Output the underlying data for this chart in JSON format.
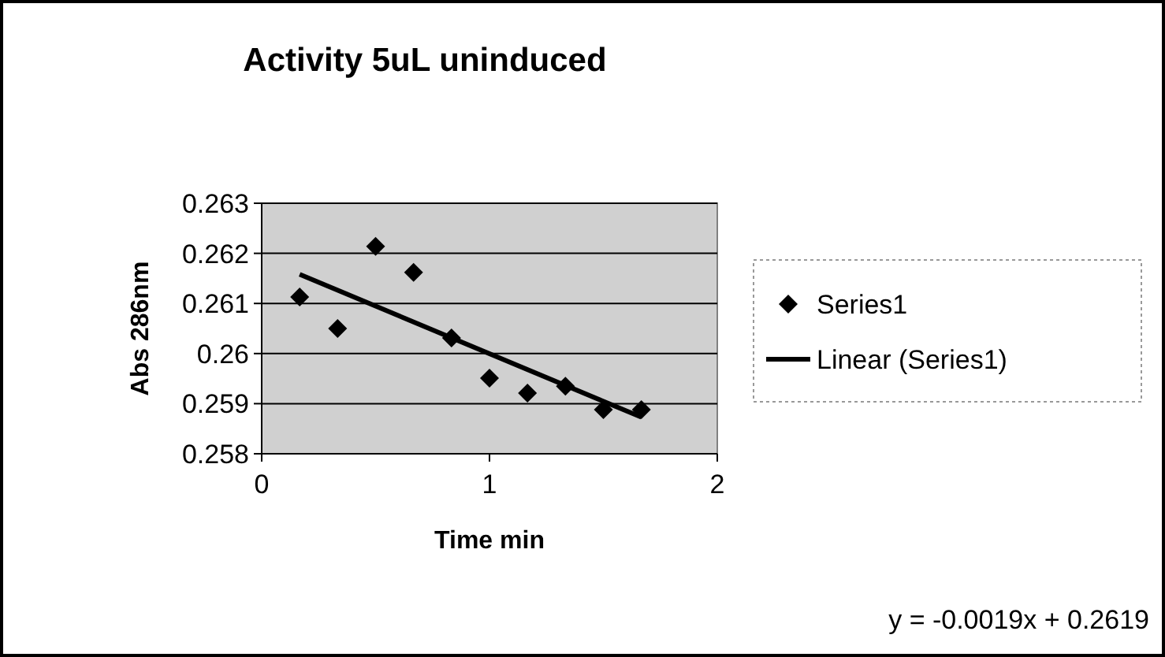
{
  "chart_data": {
    "type": "scatter",
    "title": "Activity 5uL uninduced",
    "xlabel": "Time min",
    "ylabel": "Abs 286nm",
    "xlim": [
      0,
      2
    ],
    "xticks": [
      0,
      1,
      2
    ],
    "ylim": [
      0.258,
      0.263
    ],
    "yticks": [
      0.258,
      0.259,
      0.26,
      0.261,
      0.262,
      0.263
    ],
    "grid": "y",
    "legend": "right",
    "series": [
      {
        "name": "Series1",
        "marker": "diamond",
        "color": "#000000",
        "x": [
          0.1667,
          0.3333,
          0.5,
          0.6667,
          0.8333,
          1.0,
          1.1667,
          1.3333,
          1.5,
          1.6667
        ],
        "values": [
          0.26113,
          0.2605,
          0.26214,
          0.26162,
          0.26031,
          0.25951,
          0.25921,
          0.25935,
          0.25888,
          0.25888
        ]
      },
      {
        "name": "Linear (Series1)",
        "type": "line",
        "marker": "none",
        "line_style": "solid",
        "color": "#000000",
        "x": [
          0.1667,
          1.6667
        ],
        "values": [
          0.26158,
          0.25873
        ]
      }
    ],
    "annotations": [
      "y = -0.0019x + 0.2619"
    ]
  }
}
